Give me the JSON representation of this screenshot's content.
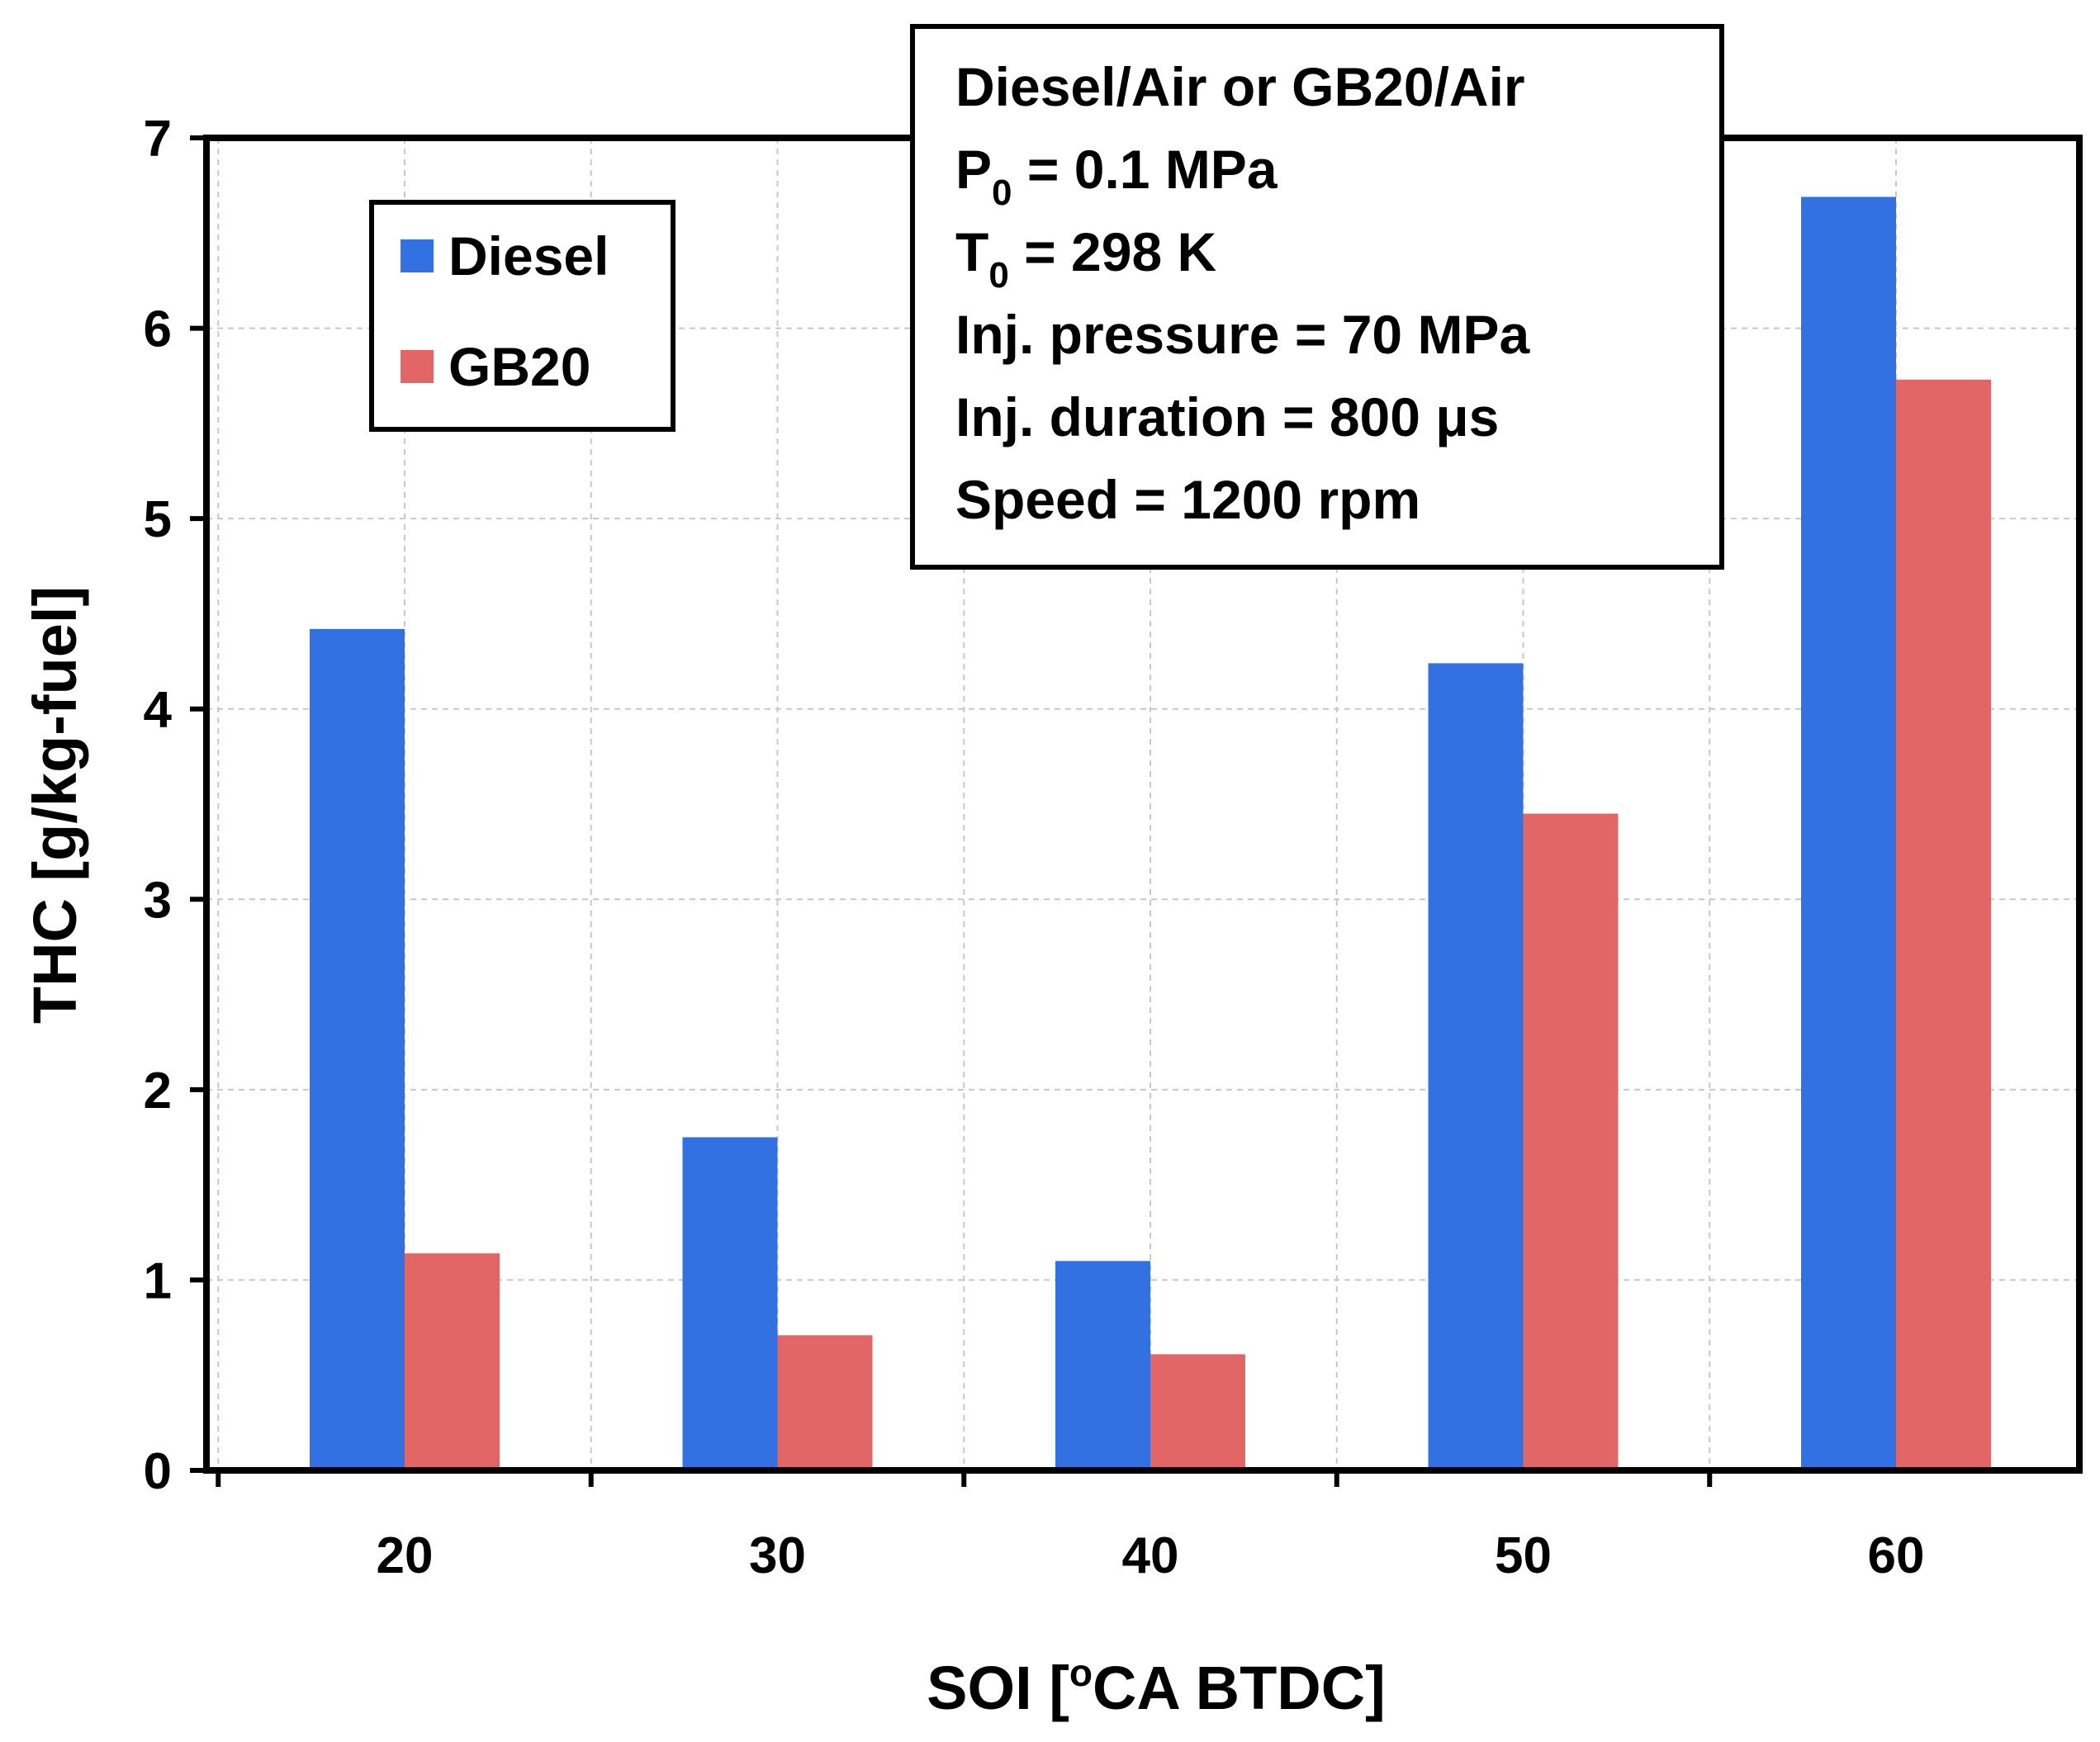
{
  "chart_data": {
    "type": "bar",
    "categories": [
      "20",
      "30",
      "40",
      "50",
      "60"
    ],
    "series": [
      {
        "name": "Diesel",
        "color": "#3371E2",
        "values": [
          4.42,
          1.75,
          1.1,
          4.24,
          6.69
        ]
      },
      {
        "name": "GB20",
        "color": "#E26666",
        "values": [
          1.14,
          0.71,
          0.61,
          3.45,
          5.73
        ]
      }
    ],
    "xlabel": {
      "pre": "SOI [",
      "sup": "o",
      "post": "CA BTDC]"
    },
    "ylabel": "THC [g/kg-fuel]",
    "ylim": [
      0,
      7
    ],
    "yticks": [
      "0",
      "1",
      "2",
      "3",
      "4",
      "5",
      "6",
      "7"
    ],
    "grid": true,
    "legend_position": "top-left",
    "annotation": {
      "line1": "Diesel/Air or GB20/Air",
      "line2": {
        "pre": "P",
        "sub": "0",
        "post": " = 0.1 MPa"
      },
      "line3": {
        "pre": "T",
        "sub": "0",
        "post": " = 298 K"
      },
      "line4": "Inj. pressure = 70 MPa",
      "line5": "Inj. duration = 800 μs",
      "line6": "Speed = 1200 rpm"
    }
  }
}
